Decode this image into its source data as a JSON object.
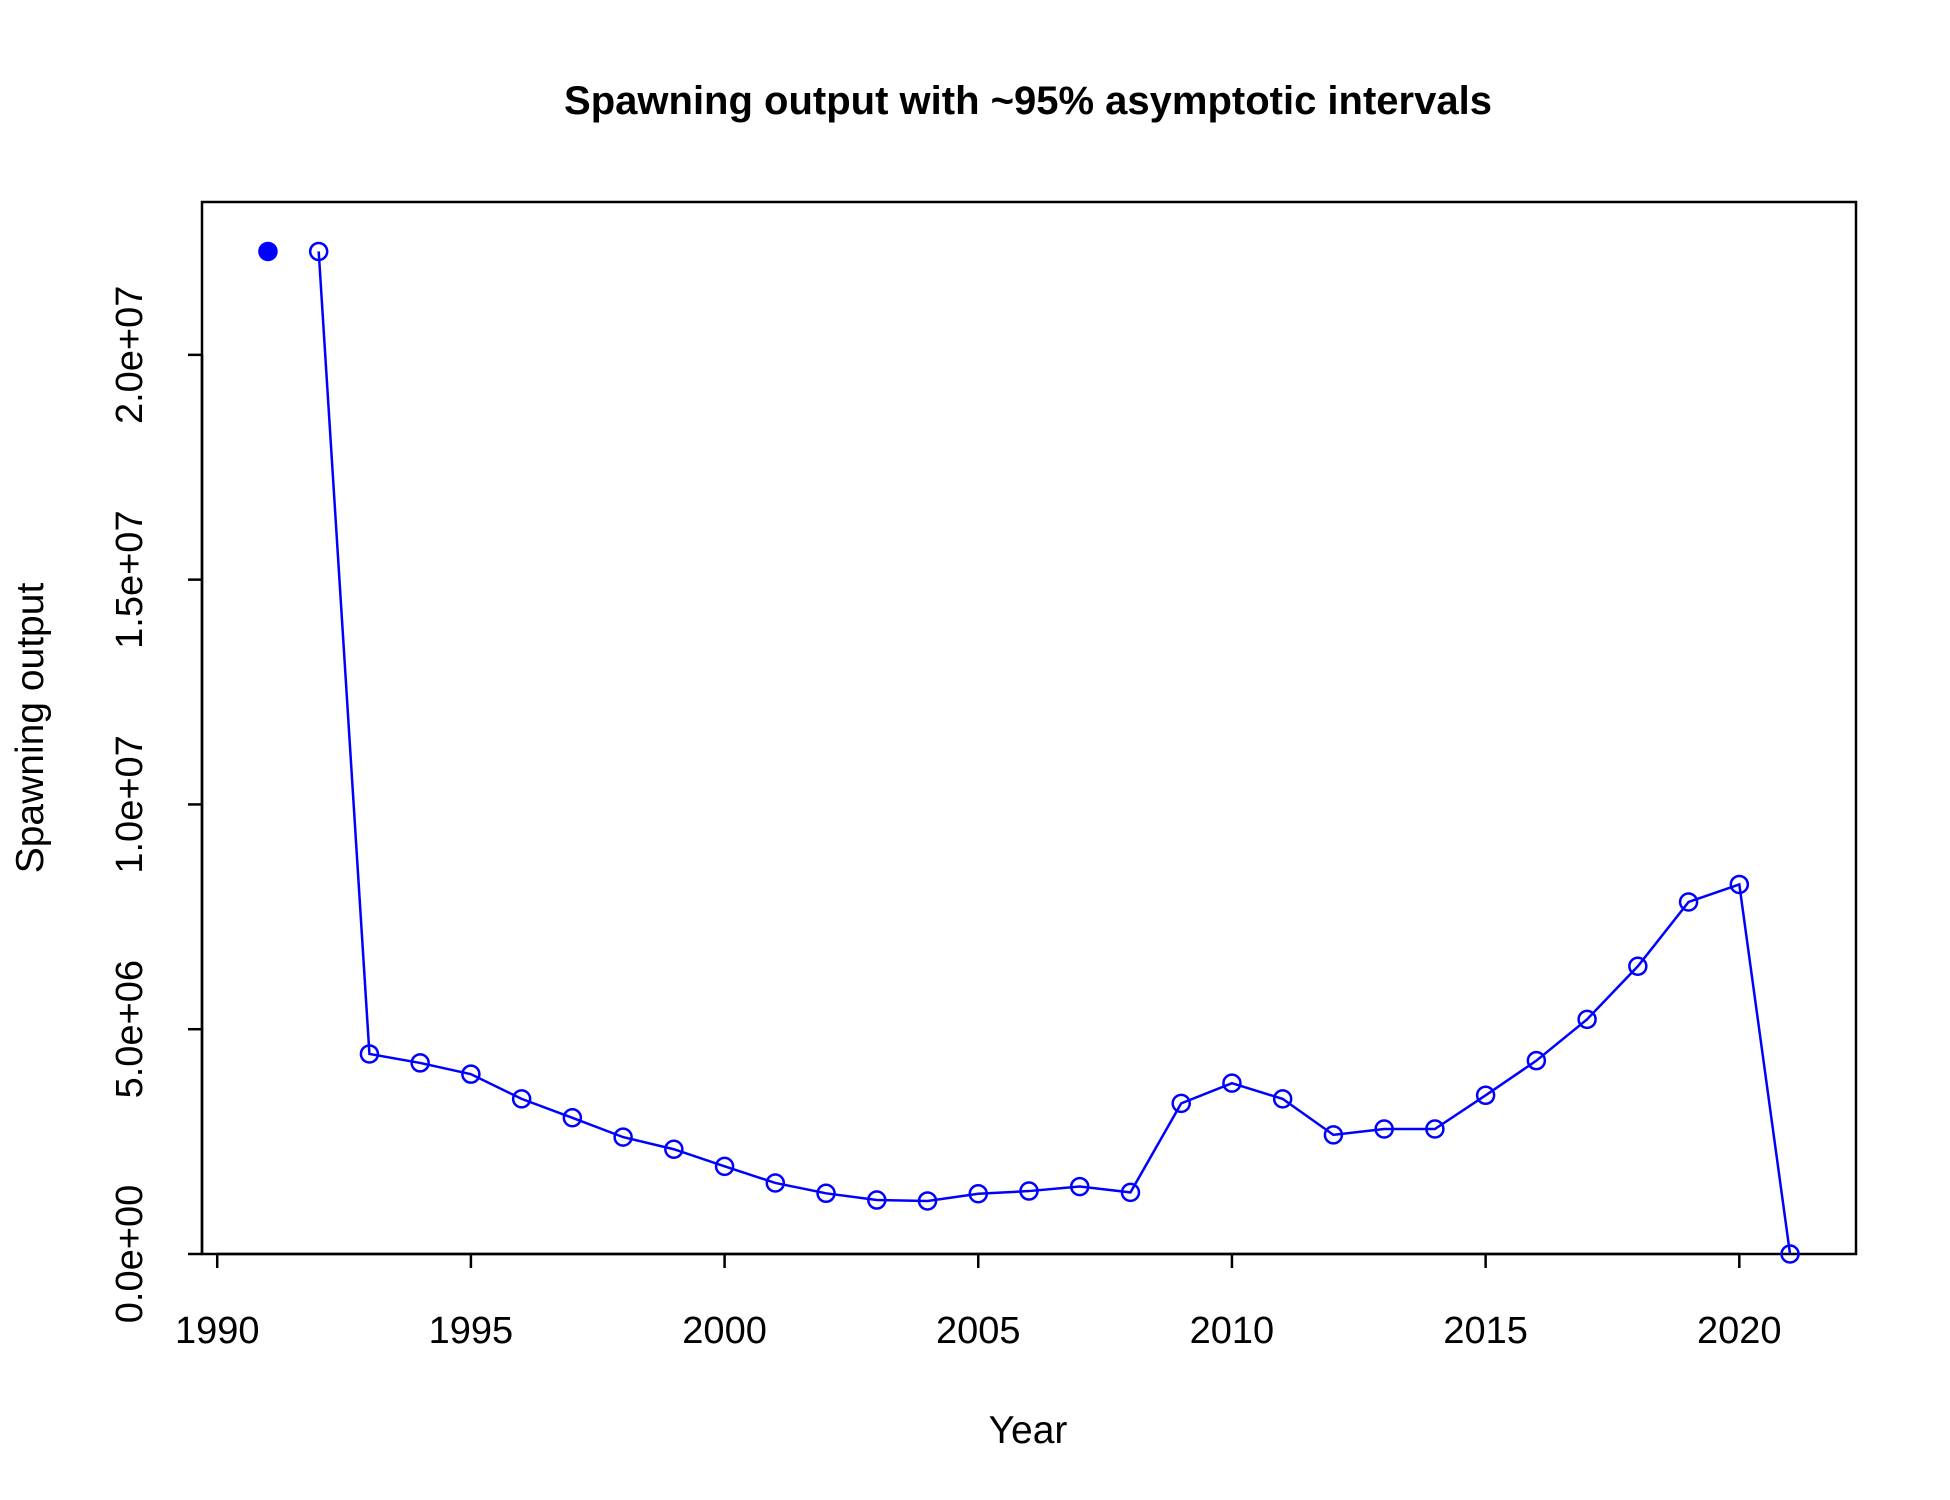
{
  "chart_data": {
    "type": "line",
    "title": "Spawning output with ~95% asymptotic intervals",
    "xlabel": "Year",
    "ylabel": "Spawning output",
    "xlim": [
      1989.7,
      2022.3
    ],
    "ylim": [
      0,
      23400000
    ],
    "x_ticks": [
      1990,
      1995,
      2000,
      2005,
      2010,
      2015,
      2020
    ],
    "x_tick_labels": [
      "1990",
      "1995",
      "2000",
      "2005",
      "2010",
      "2015",
      "2020"
    ],
    "y_ticks": [
      0,
      5000000,
      10000000,
      15000000,
      20000000
    ],
    "y_tick_labels": [
      "0.0e+00",
      "5.0e+06",
      "1.0e+07",
      "1.5e+07",
      "2.0e+07"
    ],
    "grid": false,
    "legend": "none",
    "colors": {
      "series": "#0000ff",
      "axis": "#000000"
    },
    "virgin_point": {
      "x": 1991,
      "y": 22300000,
      "marker": "filled-circle"
    },
    "series": [
      {
        "marker": "open-circle",
        "x": [
          1992,
          1993,
          1994,
          1995,
          1996,
          1997,
          1998,
          1999,
          2000,
          2001,
          2002,
          2003,
          2004,
          2005,
          2006,
          2007,
          2008,
          2009,
          2010,
          2011,
          2012,
          2013,
          2014,
          2015,
          2016,
          2017,
          2018,
          2019,
          2020,
          2021
        ],
        "values": [
          22300000,
          4450000,
          4250000,
          4000000,
          3450000,
          3030000,
          2600000,
          2330000,
          1950000,
          1580000,
          1350000,
          1200000,
          1180000,
          1340000,
          1400000,
          1500000,
          1370000,
          3350000,
          3800000,
          3450000,
          2650000,
          2780000,
          2780000,
          3530000,
          4300000,
          5220000,
          6400000,
          7830000,
          8220000,
          0
        ]
      }
    ]
  }
}
